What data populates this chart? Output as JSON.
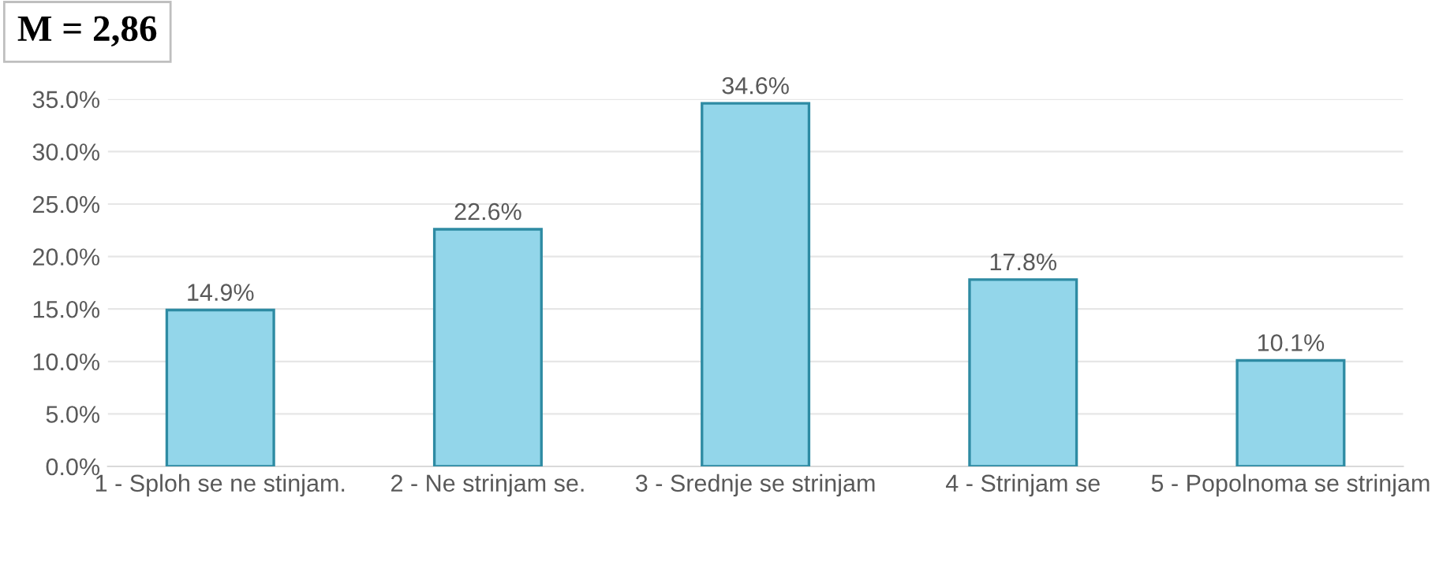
{
  "chart_data": {
    "type": "bar",
    "title": "M = 2,86",
    "categories": [
      "1 - Sploh se ne stinjam.",
      "2 - Ne strinjam se.",
      "3 - Srednje se strinjam",
      "4 - Strinjam se",
      "5 - Popolnoma se strinjam"
    ],
    "values": [
      14.9,
      22.6,
      34.6,
      17.8,
      10.1
    ],
    "value_labels": [
      "14.9%",
      "22.6%",
      "34.6%",
      "17.8%",
      "10.1%"
    ],
    "color": "#93d6ea",
    "ylim": [
      0,
      35
    ],
    "yticks": [
      {
        "value": 0,
        "label": "0.0%"
      },
      {
        "value": 5,
        "label": "5.0%"
      },
      {
        "value": 10,
        "label": "10.0%"
      },
      {
        "value": 15,
        "label": "15.0%"
      },
      {
        "value": 20,
        "label": "20.0%"
      },
      {
        "value": 25,
        "label": "25.0%"
      },
      {
        "value": 30,
        "label": "30.0%"
      },
      {
        "value": 35,
        "label": "35.0%"
      }
    ],
    "grid": "y"
  }
}
